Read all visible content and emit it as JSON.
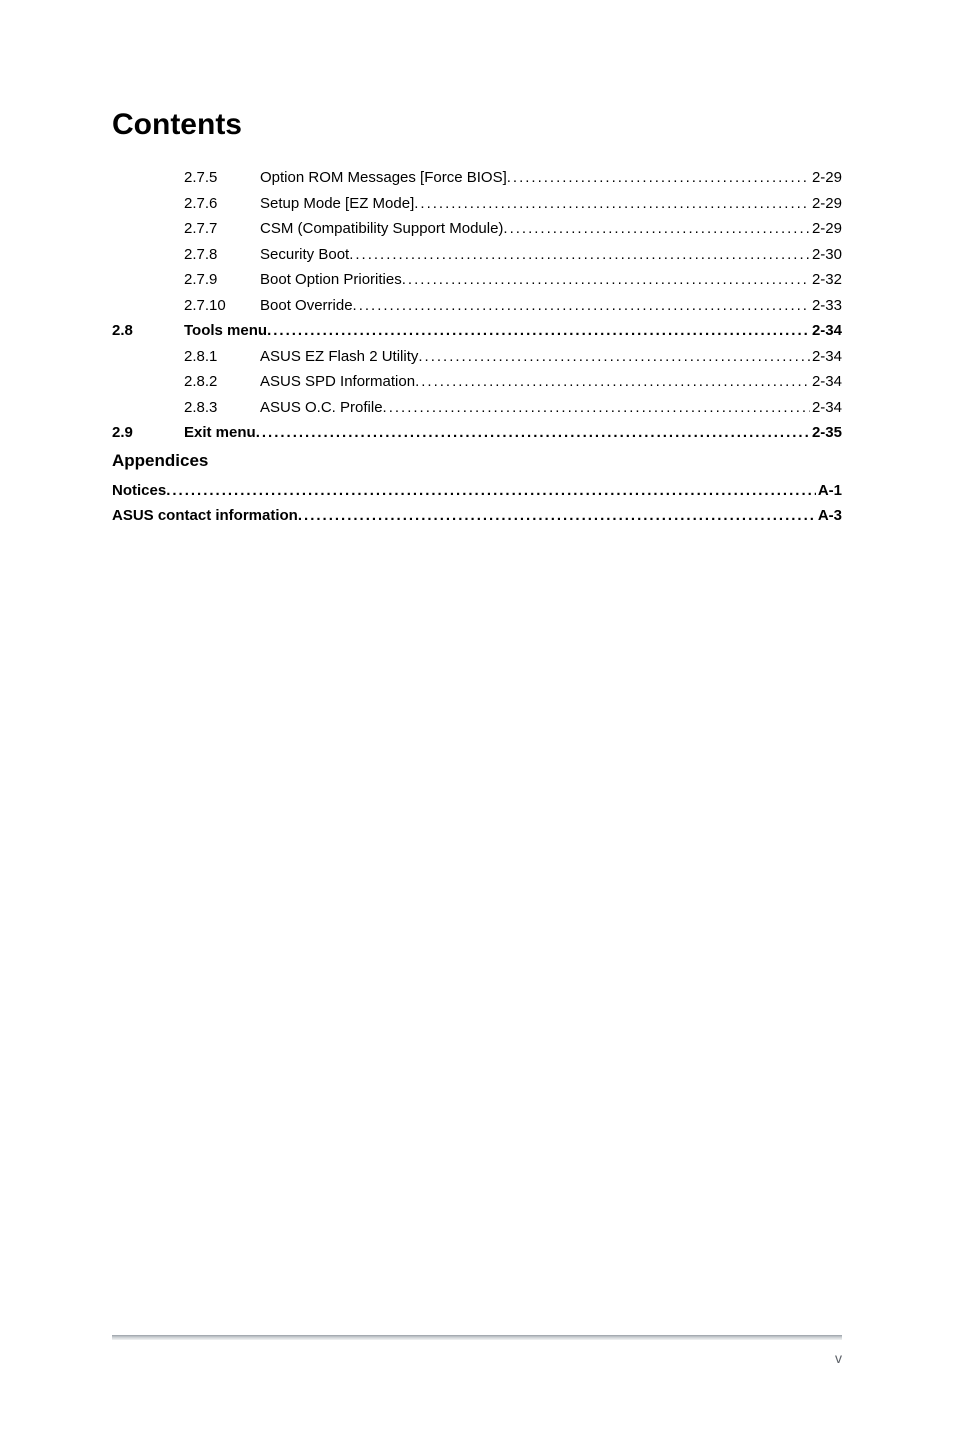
{
  "title": "Contents",
  "entries": [
    {
      "level": 2,
      "num": "",
      "sub": "2.7.5",
      "label": "Option ROM Messages [Force BIOS]",
      "page": "2-29",
      "bold": false
    },
    {
      "level": 2,
      "num": "",
      "sub": "2.7.6",
      "label": "Setup Mode [EZ Mode]",
      "page": "2-29",
      "bold": false
    },
    {
      "level": 2,
      "num": "",
      "sub": "2.7.7",
      "label": "CSM (Compatibility Support Module)",
      "page": "2-29",
      "bold": false
    },
    {
      "level": 2,
      "num": "",
      "sub": "2.7.8",
      "label": "Security Boot",
      "page": "2-30",
      "bold": false
    },
    {
      "level": 2,
      "num": "",
      "sub": "2.7.9",
      "label": "Boot Option Priorities",
      "page": "2-32",
      "bold": false
    },
    {
      "level": 2,
      "num": "",
      "sub": "2.7.10",
      "label": "Boot Override",
      "page": "2-33",
      "bold": false
    },
    {
      "level": 1,
      "num": "2.8",
      "sub": "",
      "label": "Tools menu",
      "page": "2-34",
      "bold": true
    },
    {
      "level": 2,
      "num": "",
      "sub": "2.8.1",
      "label": "ASUS EZ Flash 2 Utility",
      "page": "2-34",
      "bold": false
    },
    {
      "level": 2,
      "num": "",
      "sub": "2.8.2",
      "label": "ASUS SPD Information",
      "page": "2-34",
      "bold": false
    },
    {
      "level": 2,
      "num": "",
      "sub": "2.8.3",
      "label": "ASUS O.C. Profile",
      "page": "2-34",
      "bold": false
    },
    {
      "level": 1,
      "num": "2.9",
      "sub": "",
      "label": "Exit menu ",
      "page": "2-35",
      "bold": true
    }
  ],
  "appendices_header": "Appendices",
  "appendices": [
    {
      "label": "Notices ",
      "page": " A-1",
      "bold": true
    },
    {
      "label": "ASUS contact information",
      "page": " A-3",
      "bold": true
    }
  ],
  "footer_page": "v",
  "colors": {
    "text": "#000000",
    "background": "#ffffff",
    "footer_text": "#5a5f66"
  },
  "typography": {
    "title_fontsize": 30,
    "body_fontsize": 15,
    "section_hdr_fontsize": 17,
    "footer_fontsize": 14
  }
}
